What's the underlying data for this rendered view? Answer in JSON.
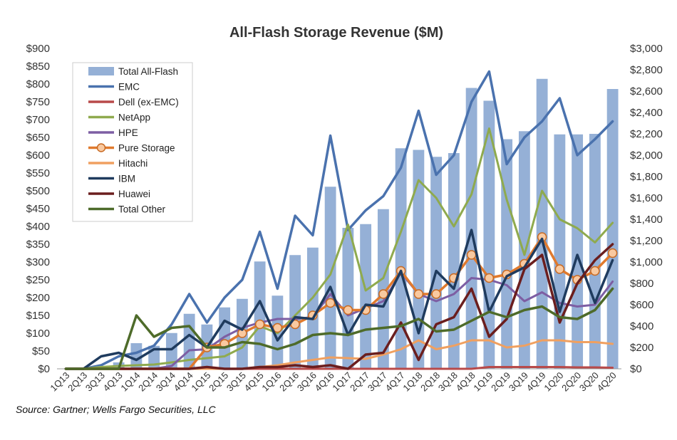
{
  "chart_data": {
    "type": "bar",
    "title": "All-Flash Storage Revenue ($M)",
    "source": "Source: Gartner; Wells Fargo Securities, LLC",
    "categories": [
      "1Q13",
      "2Q13",
      "3Q13",
      "4Q13",
      "1Q14",
      "2Q14",
      "3Q14",
      "4Q14",
      "1Q15",
      "2Q15",
      "3Q15",
      "4Q15",
      "1Q16",
      "2Q16",
      "3Q16",
      "4Q16",
      "1Q17",
      "2Q17",
      "3Q17",
      "4Q17",
      "1Q18",
      "2Q18",
      "3Q18",
      "4Q18",
      "1Q19",
      "2Q19",
      "3Q19",
      "4Q19",
      "1Q20",
      "2Q20",
      "3Q20",
      "4Q20"
    ],
    "x_tick_labels": [
      "1Q13",
      "2Q13",
      "3Q13",
      "4Q13",
      "1Q14",
      "2Q14",
      "3Q14",
      "4Q14",
      "1Q15",
      "2Q15",
      "3Q15",
      "4Q15",
      "1Q16",
      "2Q16",
      "3Q16",
      "4Q16",
      "1Q17",
      "2Q17",
      "3Q17",
      "4Q17",
      "1Q18",
      "2Q18",
      "3Q18",
      "4Q18",
      "1Q19",
      "2Q19",
      "3Q19",
      "4Q19",
      "1Q20",
      "2Q20",
      "3Q20",
      "4Q20"
    ],
    "y_left": {
      "lim": [
        0,
        900
      ],
      "step": 50,
      "tick_labels": [
        "$0",
        "$50",
        "$100",
        "$150",
        "$200",
        "$250",
        "$300",
        "$350",
        "$400",
        "$450",
        "$500",
        "$550",
        "$600",
        "$650",
        "$700",
        "$750",
        "$800",
        "$850",
        "$900"
      ]
    },
    "y_right": {
      "lim": [
        0,
        3000
      ],
      "step": 200,
      "tick_labels": [
        "$0",
        "$200",
        "$400",
        "$600",
        "$800",
        "$1,000",
        "$1,200",
        "$1,400",
        "$1,600",
        "$1,800",
        "$2,000",
        "$2,200",
        "$2,400",
        "$2,600",
        "$2,800",
        "$3,000"
      ]
    },
    "legend_position": "top-left",
    "grid": false,
    "series": [
      {
        "name": "Total All-Flash",
        "type": "bar",
        "axis": "right",
        "color": "#95b0d6",
        "values": [
          0,
          0,
          0,
          60,
          240,
          215,
          335,
          515,
          415,
          575,
          655,
          1005,
          685,
          1065,
          1135,
          1705,
          1320,
          1355,
          1495,
          2065,
          2050,
          1985,
          2020,
          2630,
          2510,
          2150,
          2225,
          2715,
          2195,
          2195,
          2200,
          2620
        ]
      },
      {
        "name": "EMC",
        "type": "line",
        "axis": "left",
        "color": "#4a72ae",
        "width": 3.5,
        "values": [
          0,
          0,
          10,
          35,
          45,
          65,
          125,
          210,
          130,
          200,
          250,
          385,
          225,
          430,
          375,
          655,
          390,
          445,
          485,
          565,
          725,
          545,
          600,
          750,
          835,
          575,
          650,
          695,
          760,
          600,
          645,
          695
        ]
      },
      {
        "name": "Dell (ex-EMC)",
        "type": "line",
        "axis": "left",
        "color": "#b84a4a",
        "width": 3,
        "values": [
          0,
          0,
          0,
          0,
          0,
          0,
          0,
          0,
          0,
          0,
          0,
          0,
          0,
          0,
          0,
          0,
          0,
          0,
          0,
          0,
          0,
          0,
          0,
          0,
          5,
          5,
          5,
          5,
          5,
          4,
          4,
          3
        ]
      },
      {
        "name": "NetApp",
        "type": "line",
        "axis": "left",
        "color": "#8faa4e",
        "width": 3,
        "values": [
          0,
          0,
          5,
          8,
          10,
          12,
          18,
          25,
          30,
          35,
          60,
          120,
          100,
          150,
          200,
          265,
          405,
          220,
          255,
          385,
          530,
          480,
          400,
          490,
          675,
          475,
          320,
          500,
          420,
          395,
          355,
          410
        ]
      },
      {
        "name": "HPE",
        "type": "line",
        "axis": "left",
        "color": "#7d5ea3",
        "width": 3,
        "values": [
          0,
          0,
          0,
          0,
          0,
          0,
          8,
          52,
          55,
          90,
          115,
          130,
          140,
          140,
          145,
          210,
          150,
          170,
          190,
          270,
          210,
          190,
          210,
          255,
          250,
          235,
          190,
          215,
          185,
          175,
          180,
          245
        ]
      },
      {
        "name": "Pure Storage",
        "type": "line",
        "axis": "left",
        "color": "#e07a2e",
        "width": 3.5,
        "markers": true,
        "values": [
          0,
          0,
          0,
          0,
          0,
          0,
          0,
          0,
          60,
          70,
          100,
          125,
          115,
          125,
          150,
          185,
          165,
          165,
          210,
          275,
          210,
          210,
          255,
          320,
          255,
          265,
          295,
          370,
          280,
          250,
          275,
          325
        ]
      },
      {
        "name": "Hitachi",
        "type": "line",
        "axis": "left",
        "color": "#f0a060",
        "width": 3,
        "values": [
          0,
          0,
          0,
          0,
          0,
          0,
          0,
          0,
          0,
          0,
          0,
          5,
          10,
          18,
          25,
          32,
          30,
          28,
          40,
          55,
          80,
          55,
          65,
          80,
          80,
          60,
          65,
          80,
          80,
          75,
          75,
          70
        ]
      },
      {
        "name": "IBM",
        "type": "line",
        "axis": "left",
        "color": "#1f3b5e",
        "width": 3.5,
        "values": [
          0,
          0,
          35,
          45,
          25,
          55,
          55,
          95,
          60,
          135,
          110,
          190,
          80,
          145,
          140,
          230,
          95,
          180,
          175,
          275,
          100,
          275,
          225,
          390,
          160,
          260,
          285,
          365,
          160,
          320,
          185,
          305
        ]
      },
      {
        "name": "Huawei",
        "type": "line",
        "axis": "left",
        "color": "#6b1e1e",
        "width": 3.5,
        "values": [
          0,
          0,
          0,
          0,
          0,
          0,
          0,
          0,
          5,
          0,
          0,
          5,
          5,
          10,
          5,
          10,
          0,
          40,
          45,
          130,
          25,
          125,
          145,
          225,
          90,
          140,
          280,
          320,
          130,
          240,
          305,
          350
        ]
      },
      {
        "name": "Total Other",
        "type": "line",
        "axis": "left",
        "color": "#4e6b2a",
        "width": 3.5,
        "values": [
          0,
          0,
          0,
          0,
          150,
          90,
          115,
          120,
          60,
          60,
          75,
          70,
          55,
          70,
          95,
          100,
          95,
          110,
          115,
          120,
          140,
          105,
          110,
          135,
          160,
          145,
          165,
          175,
          145,
          140,
          165,
          225
        ]
      }
    ]
  }
}
